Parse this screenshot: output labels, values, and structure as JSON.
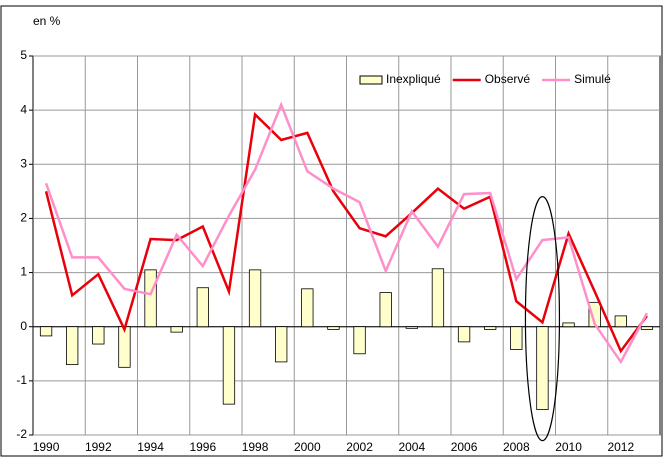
{
  "chart_data": {
    "type": "combo",
    "y_label": "en %",
    "categories": [
      "1990",
      null,
      "1992",
      null,
      "1994",
      null,
      "1996",
      null,
      "1998",
      null,
      "2000",
      null,
      "2002",
      null,
      "2004",
      null,
      "2006",
      null,
      "2008",
      null,
      "2010",
      null,
      "2012",
      null
    ],
    "series": [
      {
        "name": "Inexpliqué",
        "type": "bar",
        "color": "#ffffcc",
        "values": [
          -0.17,
          -0.7,
          -0.32,
          -0.75,
          1.05,
          -0.1,
          0.72,
          -1.43,
          1.05,
          -0.65,
          0.7,
          -0.05,
          -0.5,
          0.63,
          -0.03,
          1.07,
          -0.28,
          -0.05,
          -0.42,
          -1.53,
          0.07,
          0.45,
          0.2,
          -0.05
        ]
      },
      {
        "name": "Observé",
        "type": "line",
        "color": "#e8000b",
        "values": [
          2.5,
          0.58,
          0.97,
          -0.05,
          1.62,
          1.6,
          1.85,
          0.65,
          3.92,
          3.45,
          3.58,
          2.5,
          1.82,
          1.67,
          2.1,
          2.55,
          2.18,
          2.4,
          0.47,
          0.08,
          1.72,
          0.65,
          -0.45,
          0.2
        ]
      },
      {
        "name": "Simulé",
        "type": "line",
        "color": "#ff8fc8",
        "values": [
          2.65,
          1.28,
          1.28,
          0.7,
          0.6,
          1.7,
          1.12,
          2.05,
          2.9,
          4.1,
          2.87,
          2.55,
          2.3,
          1.03,
          2.13,
          1.48,
          2.45,
          2.47,
          0.88,
          1.6,
          1.65,
          0.05,
          -0.65,
          0.25
        ]
      }
    ],
    "ylim": [
      -2,
      5
    ],
    "yticks": [
      -2,
      -1,
      0,
      1,
      2,
      3,
      4,
      5
    ],
    "grid": true,
    "legend": "top-right"
  }
}
